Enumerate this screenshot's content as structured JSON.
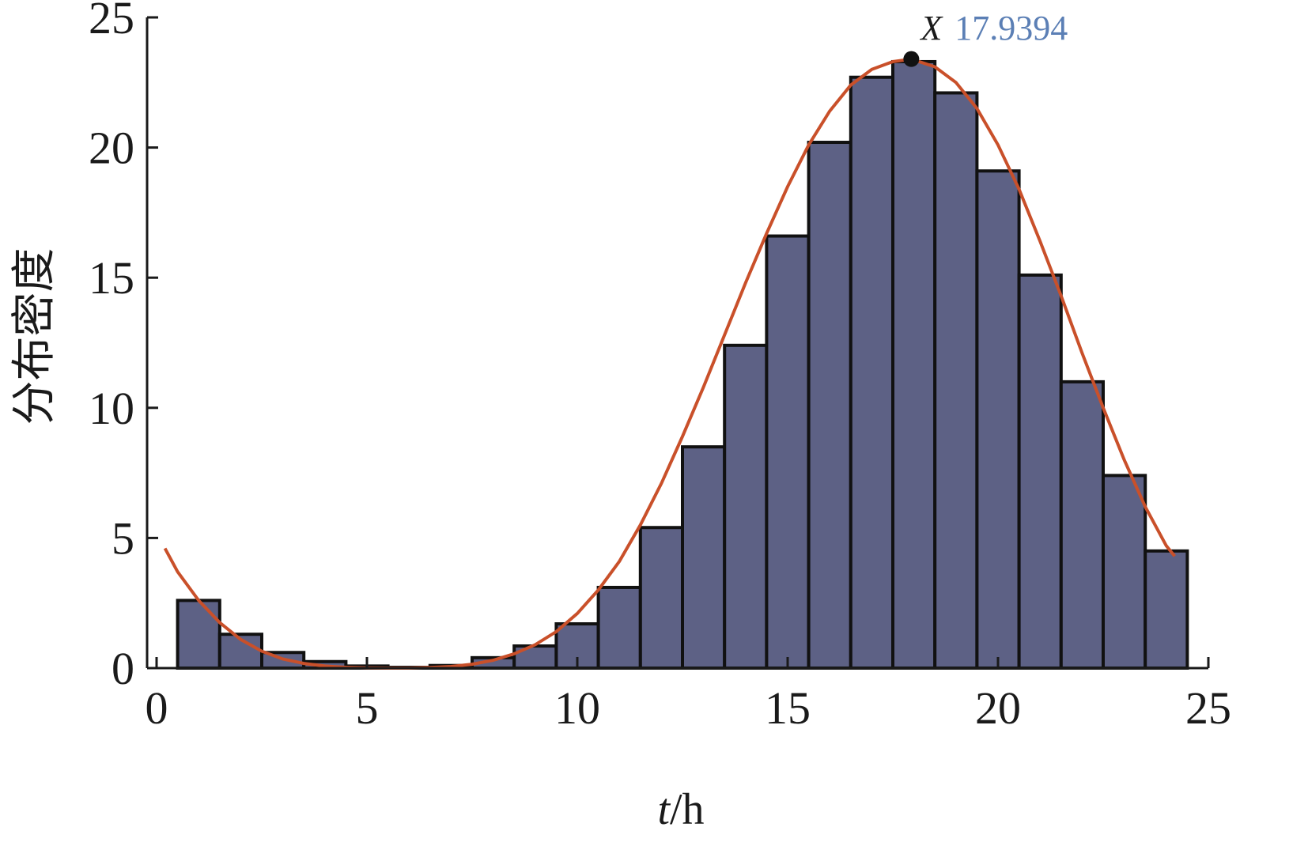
{
  "chart_data": {
    "type": "bar",
    "xlabel_var": "t",
    "xlabel_unit": "/h",
    "ylabel": "分布密度",
    "xlim": [
      0,
      25
    ],
    "ylim": [
      0,
      25
    ],
    "xticks": [
      0,
      5,
      10,
      15,
      20,
      25
    ],
    "yticks": [
      0,
      5,
      10,
      15,
      20,
      25
    ],
    "grid": false,
    "bins": [
      {
        "x0": 0.5,
        "x1": 1.5,
        "value": 2.6
      },
      {
        "x0": 1.5,
        "x1": 2.5,
        "value": 1.3
      },
      {
        "x0": 2.5,
        "x1": 3.5,
        "value": 0.6
      },
      {
        "x0": 3.5,
        "x1": 4.5,
        "value": 0.25
      },
      {
        "x0": 4.5,
        "x1": 5.5,
        "value": 0.08
      },
      {
        "x0": 5.5,
        "x1": 6.5,
        "value": 0.03
      },
      {
        "x0": 6.5,
        "x1": 7.5,
        "value": 0.1
      },
      {
        "x0": 7.5,
        "x1": 8.5,
        "value": 0.4
      },
      {
        "x0": 8.5,
        "x1": 9.5,
        "value": 0.85
      },
      {
        "x0": 9.5,
        "x1": 10.5,
        "value": 1.7
      },
      {
        "x0": 10.5,
        "x1": 11.5,
        "value": 3.1
      },
      {
        "x0": 11.5,
        "x1": 12.5,
        "value": 5.4
      },
      {
        "x0": 12.5,
        "x1": 13.5,
        "value": 8.5
      },
      {
        "x0": 13.5,
        "x1": 14.5,
        "value": 12.4
      },
      {
        "x0": 14.5,
        "x1": 15.5,
        "value": 16.6
      },
      {
        "x0": 15.5,
        "x1": 16.5,
        "value": 20.2
      },
      {
        "x0": 16.5,
        "x1": 17.5,
        "value": 22.7
      },
      {
        "x0": 17.5,
        "x1": 18.5,
        "value": 23.3
      },
      {
        "x0": 18.5,
        "x1": 19.5,
        "value": 22.1
      },
      {
        "x0": 19.5,
        "x1": 20.5,
        "value": 19.1
      },
      {
        "x0": 20.5,
        "x1": 21.5,
        "value": 15.1
      },
      {
        "x0": 21.5,
        "x1": 22.5,
        "value": 11.0
      },
      {
        "x0": 22.5,
        "x1": 23.5,
        "value": 7.4
      },
      {
        "x0": 23.5,
        "x1": 24.5,
        "value": 4.5
      }
    ],
    "fit_curve": {
      "x": [
        0.2,
        0.5,
        1.0,
        1.5,
        2.0,
        2.5,
        3.0,
        3.5,
        4.0,
        4.5,
        5.0,
        5.5,
        6.0,
        6.5,
        7.0,
        7.5,
        8.0,
        8.5,
        9.0,
        9.5,
        10.0,
        10.5,
        11.0,
        11.5,
        12.0,
        12.5,
        13.0,
        13.5,
        14.0,
        14.5,
        15.0,
        15.5,
        16.0,
        16.5,
        17.0,
        17.5,
        17.9394,
        18.5,
        19.0,
        19.5,
        20.0,
        20.5,
        21.0,
        21.5,
        22.0,
        22.5,
        23.0,
        23.5,
        24.0,
        24.2
      ],
      "y": [
        4.6,
        3.7,
        2.6,
        1.75,
        1.1,
        0.65,
        0.35,
        0.18,
        0.08,
        0.03,
        0.01,
        0.0,
        0.0,
        0.02,
        0.06,
        0.15,
        0.3,
        0.55,
        0.9,
        1.4,
        2.1,
        3.0,
        4.1,
        5.5,
        7.1,
        8.9,
        10.8,
        12.8,
        14.8,
        16.7,
        18.5,
        20.1,
        21.4,
        22.4,
        23.0,
        23.3,
        23.4,
        23.1,
        22.5,
        21.5,
        20.1,
        18.4,
        16.4,
        14.3,
        12.1,
        10.0,
        8.0,
        6.2,
        4.7,
        4.3
      ]
    },
    "annotation": {
      "letter": "X",
      "value": "17.9394",
      "x": 17.9394,
      "y": 23.4,
      "value_color": "#5b7fb5"
    },
    "colors": {
      "bar_fill": "#5d6185",
      "bar_stroke": "#111111",
      "curve": "#c9502a",
      "axis": "#1a1a1a",
      "marker": "#111111"
    }
  }
}
